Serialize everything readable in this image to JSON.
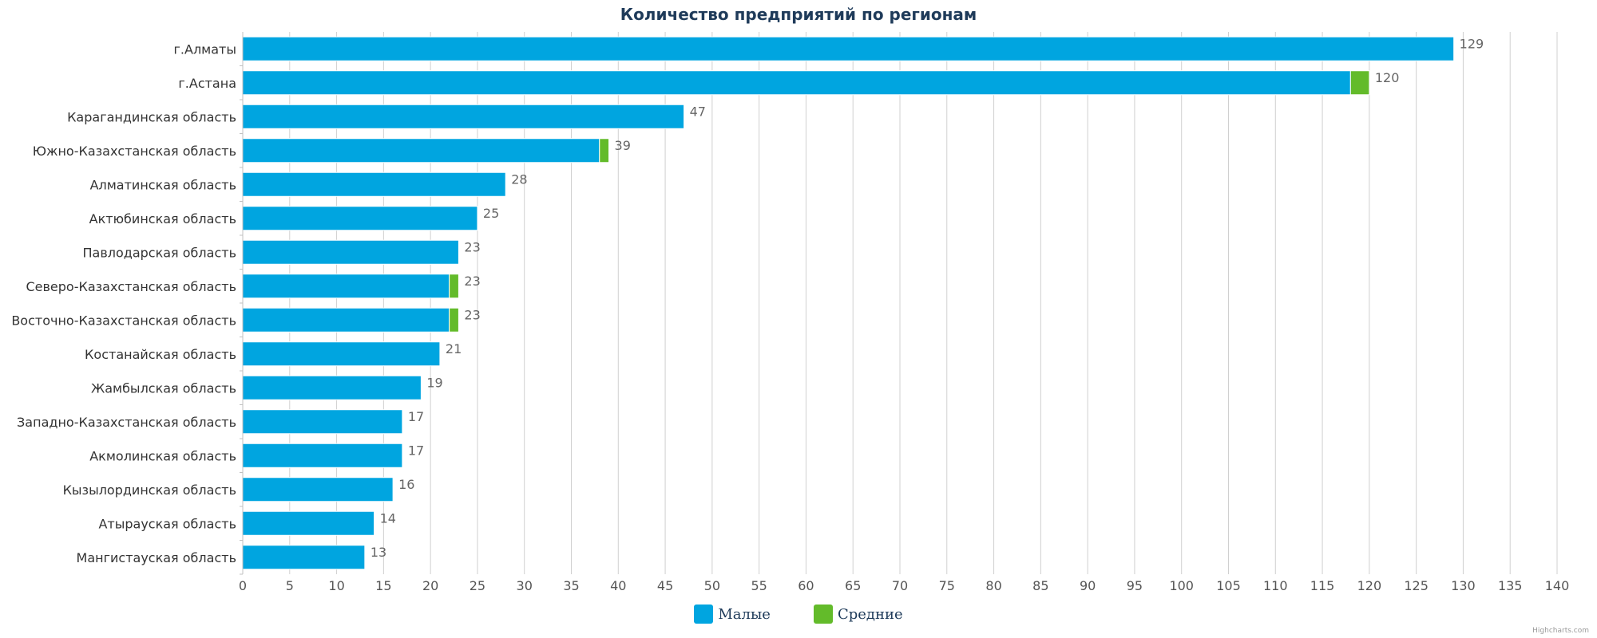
{
  "chart_data": {
    "type": "bar",
    "orientation": "horizontal",
    "stacked": true,
    "title": "Количество предприятий по регионам",
    "categories": [
      "г.Алматы",
      "г.Астана",
      "Карагандинская область",
      "Южно-Казахстанская область",
      "Алматинская область",
      "Актюбинская область",
      "Павлодарская область",
      "Северо-Казахстанская область",
      "Восточно-Казахстанская область",
      "Костанайская область",
      "Жамбылская область",
      "Западно-Казахстанская область",
      "Акмолинская область",
      "Кызылординская область",
      "Атырауская область",
      "Мангистауская область"
    ],
    "series": [
      {
        "name": "Малые",
        "color": "#00a5e0",
        "values": [
          129,
          118,
          47,
          38,
          28,
          25,
          23,
          22,
          22,
          21,
          19,
          17,
          17,
          16,
          14,
          13
        ]
      },
      {
        "name": "Средние",
        "color": "#63bb2a",
        "values": [
          0,
          2,
          0,
          1,
          0,
          0,
          0,
          1,
          1,
          0,
          0,
          0,
          0,
          0,
          0,
          0
        ]
      }
    ],
    "totals": [
      129,
      120,
      47,
      39,
      28,
      25,
      23,
      23,
      23,
      21,
      19,
      17,
      17,
      16,
      14,
      13
    ],
    "xlim": [
      0,
      140
    ],
    "x_ticks": [
      0,
      5,
      10,
      15,
      20,
      25,
      30,
      35,
      40,
      45,
      50,
      55,
      60,
      65,
      70,
      75,
      80,
      85,
      90,
      95,
      100,
      105,
      110,
      115,
      120,
      125,
      130,
      135,
      140
    ],
    "grid": true,
    "legend_position": "bottom-center",
    "credits": "Highcharts.com"
  }
}
